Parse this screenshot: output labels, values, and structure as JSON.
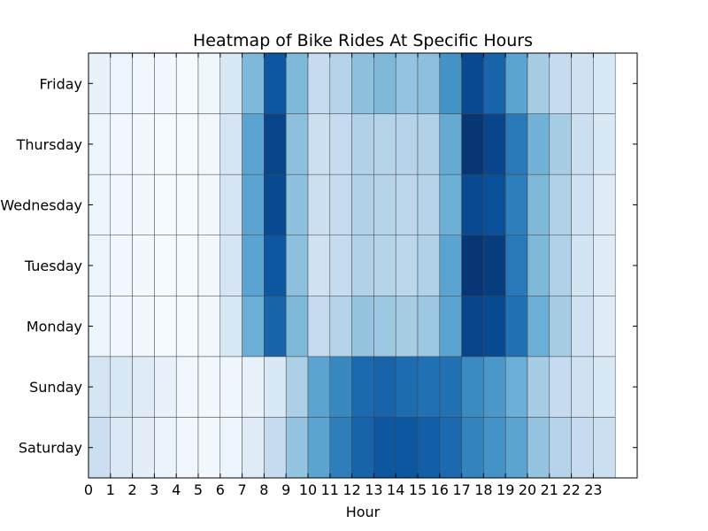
{
  "chart_data": {
    "type": "heatmap",
    "title": "Heatmap of Bike Rides At Specific Hours",
    "xlabel": "Hour",
    "ylabel": "",
    "x": [
      "0",
      "1",
      "2",
      "3",
      "4",
      "5",
      "6",
      "7",
      "8",
      "9",
      "10",
      "11",
      "12",
      "13",
      "14",
      "15",
      "16",
      "17",
      "18",
      "19",
      "20",
      "21",
      "22",
      "23"
    ],
    "y": [
      "Saturday",
      "Sunday",
      "Monday",
      "Tuesday",
      "Wednesday",
      "Thursday",
      "Friday"
    ],
    "xlim": [
      0,
      25
    ],
    "colormap": "Blues",
    "grid": true,
    "values": [
      [
        0.22,
        0.14,
        0.1,
        0.06,
        0.03,
        0.02,
        0.05,
        0.12,
        0.25,
        0.4,
        0.55,
        0.7,
        0.8,
        0.85,
        0.85,
        0.82,
        0.78,
        0.68,
        0.62,
        0.55,
        0.4,
        0.3,
        0.25,
        0.22
      ],
      [
        0.17,
        0.15,
        0.12,
        0.07,
        0.03,
        0.02,
        0.04,
        0.08,
        0.15,
        0.33,
        0.55,
        0.66,
        0.78,
        0.8,
        0.77,
        0.75,
        0.75,
        0.65,
        0.6,
        0.5,
        0.35,
        0.25,
        0.2,
        0.15
      ],
      [
        0.05,
        0.03,
        0.02,
        0.01,
        0.01,
        0.03,
        0.15,
        0.5,
        0.8,
        0.45,
        0.25,
        0.3,
        0.4,
        0.38,
        0.35,
        0.38,
        0.55,
        0.92,
        0.9,
        0.75,
        0.5,
        0.35,
        0.2,
        0.12
      ],
      [
        0.05,
        0.03,
        0.02,
        0.01,
        0.01,
        0.03,
        0.17,
        0.55,
        0.85,
        0.42,
        0.2,
        0.25,
        0.32,
        0.3,
        0.28,
        0.32,
        0.55,
        0.98,
        0.95,
        0.72,
        0.45,
        0.32,
        0.18,
        0.12
      ],
      [
        0.05,
        0.03,
        0.02,
        0.01,
        0.01,
        0.03,
        0.17,
        0.55,
        0.9,
        0.42,
        0.22,
        0.25,
        0.32,
        0.3,
        0.28,
        0.3,
        0.5,
        0.9,
        0.88,
        0.7,
        0.45,
        0.32,
        0.2,
        0.12
      ],
      [
        0.05,
        0.03,
        0.02,
        0.01,
        0.01,
        0.03,
        0.17,
        0.55,
        0.92,
        0.42,
        0.22,
        0.25,
        0.32,
        0.3,
        0.3,
        0.32,
        0.52,
        0.98,
        0.92,
        0.72,
        0.48,
        0.35,
        0.22,
        0.15
      ],
      [
        0.07,
        0.05,
        0.03,
        0.02,
        0.01,
        0.04,
        0.15,
        0.45,
        0.85,
        0.45,
        0.25,
        0.3,
        0.42,
        0.45,
        0.4,
        0.42,
        0.62,
        0.9,
        0.8,
        0.55,
        0.35,
        0.25,
        0.2,
        0.15
      ]
    ]
  }
}
